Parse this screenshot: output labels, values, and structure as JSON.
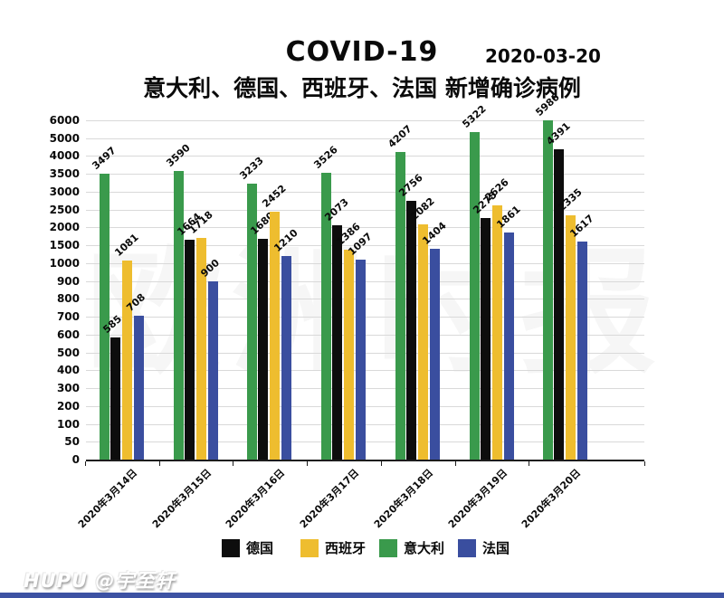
{
  "header": {
    "title": "COVID-19",
    "date": "2020-03-20",
    "subtitle": "意大利、德国、西班牙、法国 新增确诊病例"
  },
  "chart_data": {
    "type": "bar",
    "title": "COVID-19",
    "subtitle": "意大利、德国、西班牙、法国 新增确诊病例",
    "categories": [
      "2020年3月14日",
      "2020年3月15日",
      "2020年3月16日",
      "2020年3月17日",
      "2020年3月18日",
      "2020年3月19日",
      "2020年3月20日"
    ],
    "y_ticks": [
      6000,
      5000,
      4000,
      3500,
      3000,
      2500,
      2000,
      1500,
      1000,
      900,
      800,
      700,
      600,
      500,
      400,
      300,
      200,
      100,
      50,
      0
    ],
    "y_axis_note": "non-linear axis, ticks evenly spaced",
    "grid": "horizontal",
    "series": [
      {
        "name": "意大利",
        "color": "#3a9a4c",
        "values": [
          3497,
          3590,
          3233,
          3526,
          4207,
          5322,
          5986
        ]
      },
      {
        "name": "德国",
        "color": "#0d0d0d",
        "values": [
          585,
          1664,
          1680,
          2073,
          2756,
          2275,
          4391
        ]
      },
      {
        "name": "西班牙",
        "color": "#eebd2f",
        "values": [
          1081,
          1718,
          2452,
          1386,
          2082,
          2626,
          2335
        ]
      },
      {
        "name": "法国",
        "color": "#3a4e9f",
        "values": [
          708,
          900,
          1210,
          1097,
          1404,
          1861,
          1617
        ]
      }
    ],
    "legend": [
      {
        "label": "德国",
        "color": "#0d0d0d"
      },
      {
        "label": "西班牙",
        "color": "#eebd2f"
      },
      {
        "label": "意大利",
        "color": "#3a9a4c"
      },
      {
        "label": "法国",
        "color": "#3a4e9f"
      }
    ],
    "legend_position": "bottom"
  },
  "watermark_text": "欧洲时报",
  "credit": "HUPU @宇至轩",
  "colors": {
    "bottom_bar": "#3d52a3",
    "gridline": "#d9d9d9",
    "axis": "#1c1c1c",
    "background": "#ffffff"
  }
}
